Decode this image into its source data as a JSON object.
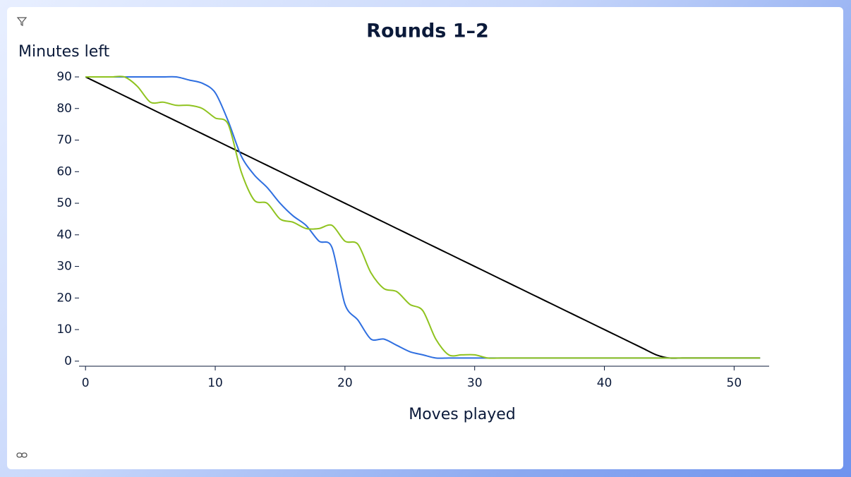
{
  "chart_data": {
    "type": "line",
    "title": "Rounds 1–2",
    "y_label": "Minutes left",
    "x_label": "Moves played",
    "x": [
      0,
      1,
      2,
      3,
      4,
      5,
      6,
      7,
      8,
      9,
      10,
      11,
      12,
      13,
      14,
      15,
      16,
      17,
      18,
      19,
      20,
      21,
      22,
      23,
      24,
      25,
      26,
      27,
      28,
      29,
      30,
      31,
      32,
      33,
      34,
      35,
      36,
      37,
      38,
      39,
      40,
      41,
      42,
      43,
      44,
      45,
      46,
      47,
      48,
      49,
      50,
      51,
      52
    ],
    "series": [
      {
        "color": "#000000",
        "values": [
          90,
          88,
          86,
          84,
          82,
          80,
          78,
          76,
          74,
          72,
          70,
          68,
          66,
          64,
          62,
          60,
          58,
          56,
          54,
          52,
          50,
          48,
          46,
          44,
          42,
          40,
          38,
          36,
          34,
          32,
          30,
          28,
          26,
          24,
          22,
          20,
          18,
          16,
          14,
          12,
          10,
          8,
          6,
          4,
          2,
          1,
          1,
          1,
          1,
          1,
          1,
          1,
          1
        ]
      },
      {
        "color": "#2f6fe0",
        "values": [
          90,
          90,
          90,
          90,
          90,
          90,
          90,
          90,
          89,
          88,
          85,
          76,
          65,
          59,
          55,
          50,
          46,
          43,
          38,
          36,
          18,
          13,
          7,
          7,
          5,
          3,
          2,
          1,
          1,
          1,
          1,
          1,
          1,
          1,
          1,
          1,
          1,
          1,
          1,
          1,
          1,
          1,
          1,
          1,
          1,
          1,
          1,
          1,
          1,
          1,
          1,
          1,
          1
        ]
      },
      {
        "color": "#8fc31f",
        "values": [
          90,
          90,
          90,
          90,
          87,
          82,
          82,
          81,
          81,
          80,
          77,
          75,
          60,
          51,
          50,
          45,
          44,
          42,
          42,
          43,
          38,
          37,
          28,
          23,
          22,
          18,
          16,
          7,
          2,
          2,
          2,
          1,
          1,
          1,
          1,
          1,
          1,
          1,
          1,
          1,
          1,
          1,
          1,
          1,
          1,
          1,
          1,
          1,
          1,
          1,
          1,
          1,
          1
        ]
      }
    ],
    "xlim": [
      -0.5,
      52.7
    ],
    "ylim": [
      -1.6,
      90
    ],
    "xticks": [
      0,
      10,
      20,
      30,
      40,
      50
    ],
    "yticks": [
      0,
      10,
      20,
      30,
      40,
      50,
      60,
      70,
      80,
      90
    ]
  }
}
